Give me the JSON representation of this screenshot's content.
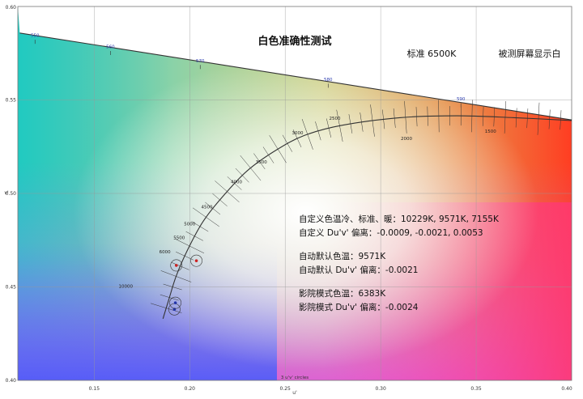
{
  "chart_data": {
    "type": "scatter",
    "title": "白色准确性测试",
    "subtitle_left": "标准 6500K",
    "subtitle_right": "被测屏幕显示白",
    "xlabel": "u'",
    "ylabel": "v'",
    "xlim": [
      0.11,
      0.4
    ],
    "ylim": [
      0.4,
      0.6
    ],
    "x_ticks": [
      "0.15",
      "0.20",
      "0.25",
      "0.30",
      "0.35",
      "0.40"
    ],
    "y_ticks": [
      "0.40",
      "0.45",
      "0.50",
      "0.55",
      "0.60"
    ],
    "grid": true,
    "circle_legend": "3 u'v' circles",
    "spectral_locus_labels": [
      {
        "text": "550",
        "u": 0.119,
        "v": 0.5835
      },
      {
        "text": "560",
        "u": 0.1585,
        "v": 0.5775
      },
      {
        "text": "570",
        "u": 0.2055,
        "v": 0.57
      },
      {
        "text": "580",
        "u": 0.2725,
        "v": 0.56
      },
      {
        "text": "590",
        "u": 0.342,
        "v": 0.5495
      }
    ],
    "cct_labels": [
      {
        "text": "1500",
        "u": 0.3575,
        "v": 0.5325
      },
      {
        "text": "2000",
        "u": 0.3135,
        "v": 0.5285
      },
      {
        "text": "2500",
        "u": 0.276,
        "v": 0.5395
      },
      {
        "text": "3000",
        "u": 0.2565,
        "v": 0.5315
      },
      {
        "text": "3500",
        "u": 0.2375,
        "v": 0.516
      },
      {
        "text": "4000",
        "u": 0.2245,
        "v": 0.5055
      },
      {
        "text": "4500",
        "u": 0.209,
        "v": 0.492
      },
      {
        "text": "5000",
        "u": 0.2,
        "v": 0.483
      },
      {
        "text": "5500",
        "u": 0.1945,
        "v": 0.4755
      },
      {
        "text": "6000",
        "u": 0.187,
        "v": 0.468
      },
      {
        "text": "10000",
        "u": 0.1665,
        "v": 0.4495
      }
    ],
    "series": [
      {
        "name": "自定义",
        "color": "#cc2222",
        "points": [
          {
            "u": 0.193,
            "v": 0.4615
          },
          {
            "u": 0.2035,
            "v": 0.464
          }
        ]
      },
      {
        "name": "自动默认",
        "color": "#2233aa",
        "points": [
          {
            "u": 0.192,
            "v": 0.438
          },
          {
            "u": 0.1925,
            "v": 0.4415
          }
        ]
      }
    ],
    "annotations": [
      "自定义色温冷、标准、暖：10229K, 9571K, 7155K",
      "自定义 Du'v' 偏离：-0.0009, -0.0021, 0.0053",
      "自动默认色温：9571K",
      "自动默认 Du'v' 偏离：-0.0021",
      "影院模式色温：6383K",
      "影院模式 Du'v' 偏离：-0.0024"
    ]
  }
}
